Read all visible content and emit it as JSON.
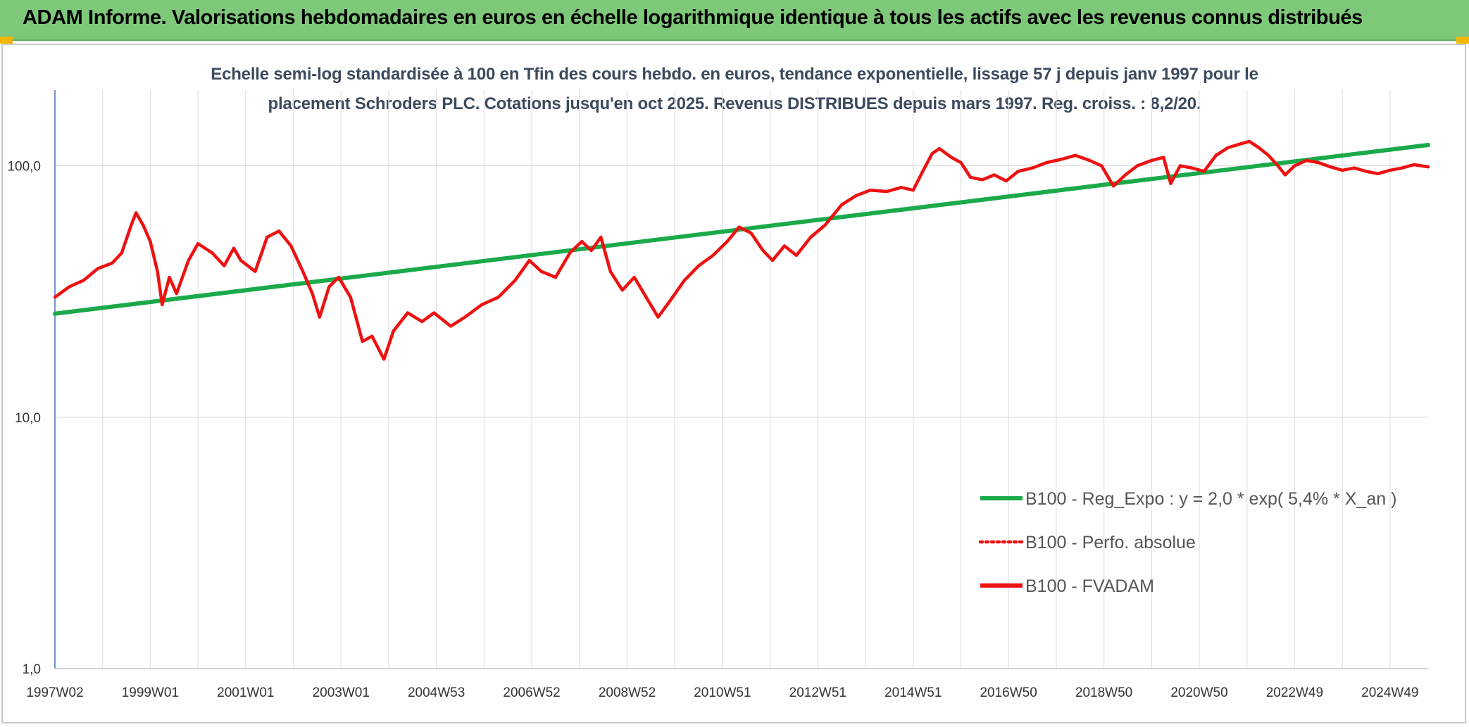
{
  "header": {
    "title": "ADAM Informe. Valorisations hebdomadaires en euros en échelle logarithmique identique à tous les actifs avec les revenus connus distribués"
  },
  "chart_data": {
    "type": "line",
    "title_line1": "Echelle semi-log standardisée à 100 en Tfin des cours hebdo. en euros, tendance exponentielle, lissage 57 j depuis janv 1997 pour le",
    "title_line2": "placement Schroders PLC. Cotations jusqu'en oct 2025. Revenus DISTRIBUES depuis mars 1997. Reg. croiss. : 8,2/20.",
    "y_scale": "log",
    "ylim": [
      1,
      200
    ],
    "y_ticks": [
      {
        "value": 1,
        "label": "1,0"
      },
      {
        "value": 10,
        "label": "10,0"
      },
      {
        "value": 100,
        "label": "100,0"
      }
    ],
    "x_range": [
      1997.0,
      2025.8
    ],
    "x_ticks": [
      {
        "x": 1997.0,
        "label": "1997W02"
      },
      {
        "x": 1999.0,
        "label": "1999W01"
      },
      {
        "x": 2001.0,
        "label": "2001W01"
      },
      {
        "x": 2003.0,
        "label": "2003W01"
      },
      {
        "x": 2005.0,
        "label": "2004W53"
      },
      {
        "x": 2007.0,
        "label": "2006W52"
      },
      {
        "x": 2009.0,
        "label": "2008W52"
      },
      {
        "x": 2011.0,
        "label": "2010W51"
      },
      {
        "x": 2013.0,
        "label": "2012W51"
      },
      {
        "x": 2015.0,
        "label": "2014W51"
      },
      {
        "x": 2017.0,
        "label": "2016W50"
      },
      {
        "x": 2019.0,
        "label": "2018W50"
      },
      {
        "x": 2021.0,
        "label": "2020W50"
      },
      {
        "x": 2023.0,
        "label": "2022W49"
      },
      {
        "x": 2025.0,
        "label": "2024W49"
      }
    ],
    "grid": true,
    "legend_position": "bottom-right",
    "series": [
      {
        "name": "B100 - Reg_Expo : y = 2,0 * exp( 5,4% *  X_an )",
        "color": "#1aaa4a",
        "style": "solid",
        "points": [
          [
            1997.0,
            25.8
          ],
          [
            2025.8,
            121.0
          ]
        ]
      },
      {
        "name": "B100 - Perfo. absolue",
        "color": "#ee1111",
        "style": "dotted",
        "points": []
      },
      {
        "name": "B100 - FVADAM",
        "color": "#ee1111",
        "style": "solid",
        "points": [
          [
            1997.0,
            30
          ],
          [
            1997.3,
            33
          ],
          [
            1997.6,
            35
          ],
          [
            1997.9,
            39
          ],
          [
            1998.2,
            41
          ],
          [
            1998.4,
            45
          ],
          [
            1998.6,
            58
          ],
          [
            1998.7,
            65
          ],
          [
            1998.85,
            58
          ],
          [
            1999.0,
            50
          ],
          [
            1999.15,
            38
          ],
          [
            1999.25,
            28
          ],
          [
            1999.4,
            36
          ],
          [
            1999.55,
            31
          ],
          [
            1999.8,
            42
          ],
          [
            2000.0,
            49
          ],
          [
            2000.3,
            45
          ],
          [
            2000.55,
            40
          ],
          [
            2000.75,
            47
          ],
          [
            2000.9,
            42
          ],
          [
            2001.2,
            38
          ],
          [
            2001.45,
            52
          ],
          [
            2001.7,
            55
          ],
          [
            2001.95,
            48
          ],
          [
            2002.2,
            38
          ],
          [
            2002.4,
            31
          ],
          [
            2002.55,
            25
          ],
          [
            2002.75,
            33
          ],
          [
            2002.95,
            36
          ],
          [
            2003.2,
            30
          ],
          [
            2003.45,
            20
          ],
          [
            2003.65,
            21
          ],
          [
            2003.9,
            17
          ],
          [
            2004.1,
            22
          ],
          [
            2004.4,
            26
          ],
          [
            2004.7,
            24
          ],
          [
            2004.95,
            26
          ],
          [
            2005.3,
            23
          ],
          [
            2005.6,
            25
          ],
          [
            2005.95,
            28
          ],
          [
            2006.3,
            30
          ],
          [
            2006.65,
            35
          ],
          [
            2006.95,
            42
          ],
          [
            2007.2,
            38
          ],
          [
            2007.5,
            36
          ],
          [
            2007.8,
            45
          ],
          [
            2008.05,
            50
          ],
          [
            2008.25,
            46
          ],
          [
            2008.45,
            52
          ],
          [
            2008.65,
            38
          ],
          [
            2008.9,
            32
          ],
          [
            2009.15,
            36
          ],
          [
            2009.4,
            30
          ],
          [
            2009.65,
            25
          ],
          [
            2009.9,
            29
          ],
          [
            2010.2,
            35
          ],
          [
            2010.5,
            40
          ],
          [
            2010.8,
            44
          ],
          [
            2011.1,
            50
          ],
          [
            2011.35,
            57
          ],
          [
            2011.6,
            54
          ],
          [
            2011.85,
            46
          ],
          [
            2012.05,
            42
          ],
          [
            2012.3,
            48
          ],
          [
            2012.55,
            44
          ],
          [
            2012.85,
            52
          ],
          [
            2013.15,
            58
          ],
          [
            2013.5,
            70
          ],
          [
            2013.8,
            76
          ],
          [
            2014.1,
            80
          ],
          [
            2014.45,
            79
          ],
          [
            2014.75,
            82
          ],
          [
            2015.0,
            80
          ],
          [
            2015.2,
            95
          ],
          [
            2015.4,
            112
          ],
          [
            2015.55,
            117
          ],
          [
            2015.8,
            108
          ],
          [
            2016.0,
            103
          ],
          [
            2016.2,
            90
          ],
          [
            2016.45,
            88
          ],
          [
            2016.7,
            92
          ],
          [
            2016.95,
            87
          ],
          [
            2017.2,
            95
          ],
          [
            2017.5,
            98
          ],
          [
            2017.8,
            103
          ],
          [
            2018.1,
            106
          ],
          [
            2018.4,
            110
          ],
          [
            2018.7,
            105
          ],
          [
            2018.95,
            100
          ],
          [
            2019.2,
            83
          ],
          [
            2019.45,
            92
          ],
          [
            2019.7,
            100
          ],
          [
            2020.0,
            105
          ],
          [
            2020.25,
            108
          ],
          [
            2020.4,
            85
          ],
          [
            2020.6,
            100
          ],
          [
            2020.85,
            98
          ],
          [
            2021.1,
            95
          ],
          [
            2021.35,
            110
          ],
          [
            2021.6,
            118
          ],
          [
            2021.85,
            122
          ],
          [
            2022.05,
            125
          ],
          [
            2022.25,
            118
          ],
          [
            2022.45,
            110
          ],
          [
            2022.65,
            100
          ],
          [
            2022.8,
            92
          ],
          [
            2023.0,
            100
          ],
          [
            2023.25,
            105
          ],
          [
            2023.5,
            103
          ],
          [
            2023.75,
            99
          ],
          [
            2024.0,
            96
          ],
          [
            2024.25,
            98
          ],
          [
            2024.5,
            95
          ],
          [
            2024.75,
            93
          ],
          [
            2025.0,
            96
          ],
          [
            2025.25,
            98
          ],
          [
            2025.5,
            101
          ],
          [
            2025.8,
            99
          ]
        ]
      }
    ]
  }
}
